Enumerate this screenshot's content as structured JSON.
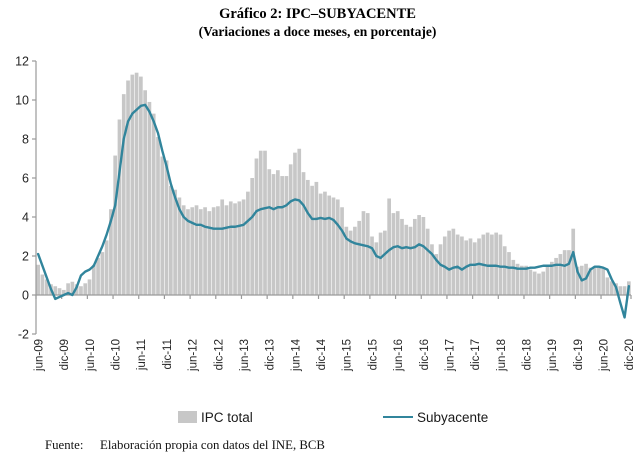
{
  "title": "Gráfico 2: IPC–SUBYACENTE",
  "subtitle": "(Variaciones a doce meses, en porcentaje)",
  "footer": {
    "label": "Fuente:",
    "text": "Elaboración propia con datos del INE, BCB"
  },
  "legend": [
    {
      "label": "IPC total",
      "type": "bar",
      "color": "#C7C7C7"
    },
    {
      "label": "Subyacente",
      "type": "line",
      "color": "#31859C"
    }
  ],
  "chart_data": {
    "type": "bar+line",
    "title": "Gráfico 2: IPC–SUBYACENTE",
    "subtitle": "(Variaciones a doce meses, en porcentaje)",
    "x_tick_labels": [
      "jun-09",
      "dic-09",
      "jun-10",
      "dic-10",
      "jun-11",
      "dic-11",
      "jun-12",
      "dic-12",
      "jun-13",
      "dic-13",
      "jun-14",
      "dic-14",
      "jun-15",
      "dic-15",
      "jun-16",
      "dic-16",
      "jun-17",
      "dic-17",
      "jun-18",
      "dic-18",
      "jun-19",
      "dic-19",
      "jun-20",
      "dic-20"
    ],
    "months_per_tick": 6,
    "y_ticks": [
      -2,
      0,
      2,
      4,
      6,
      8,
      10,
      12
    ],
    "ylim": [
      -2,
      12
    ],
    "grid": false,
    "legend_position": "bottom",
    "axis_color": "#9A9A9A",
    "label_color": "#262626",
    "series": [
      {
        "name": "IPC total",
        "type": "bar",
        "color": "#C7C7C7",
        "values": [
          1.55,
          1.05,
          0.8,
          0.55,
          0.45,
          0.35,
          0.26,
          0.6,
          0.68,
          0.55,
          0.45,
          0.6,
          0.8,
          1.55,
          1.9,
          2.2,
          2.8,
          4.4,
          7.15,
          9.0,
          10.3,
          11.0,
          11.3,
          11.4,
          11.2,
          10.5,
          9.9,
          9.3,
          8.1,
          7.1,
          6.9,
          5.6,
          5.4,
          5.0,
          4.6,
          4.4,
          4.5,
          4.6,
          4.4,
          4.5,
          4.3,
          4.5,
          4.55,
          4.9,
          4.6,
          4.8,
          4.7,
          4.8,
          4.9,
          5.3,
          6.0,
          7.0,
          7.4,
          7.4,
          6.45,
          6.2,
          6.4,
          6.1,
          6.1,
          6.7,
          7.3,
          7.5,
          6.3,
          5.9,
          5.6,
          5.8,
          5.2,
          5.3,
          5.1,
          5.0,
          4.9,
          4.5,
          3.5,
          3.3,
          3.5,
          3.8,
          4.3,
          4.2,
          3.0,
          2.7,
          3.2,
          3.3,
          4.95,
          4.2,
          4.3,
          3.9,
          3.6,
          3.5,
          3.9,
          4.1,
          4.0,
          3.4,
          2.6,
          2.1,
          2.6,
          3.0,
          3.3,
          3.4,
          3.1,
          3.0,
          2.8,
          2.9,
          2.7,
          2.9,
          3.1,
          3.2,
          3.1,
          3.2,
          3.1,
          2.5,
          2.2,
          1.8,
          1.6,
          1.5,
          1.5,
          1.3,
          1.2,
          1.1,
          1.2,
          1.5,
          1.7,
          1.9,
          2.1,
          2.3,
          2.3,
          3.4,
          1.45,
          1.5,
          1.6,
          1.4,
          1.4,
          1.4,
          1.35,
          0.9,
          0.7,
          0.6,
          0.45,
          0.45,
          0.7
        ]
      },
      {
        "name": "Subyacente",
        "type": "line",
        "color": "#31859C",
        "values": [
          2.1,
          1.5,
          0.9,
          0.3,
          -0.2,
          -0.1,
          0.0,
          0.1,
          0.0,
          0.4,
          1.0,
          1.2,
          1.3,
          1.5,
          2.0,
          2.5,
          3.1,
          3.8,
          4.6,
          6.3,
          8.0,
          8.9,
          9.3,
          9.5,
          9.7,
          9.75,
          9.4,
          8.9,
          8.3,
          7.4,
          6.6,
          5.7,
          5.0,
          4.4,
          4.0,
          3.8,
          3.7,
          3.6,
          3.6,
          3.5,
          3.45,
          3.4,
          3.4,
          3.4,
          3.45,
          3.5,
          3.5,
          3.55,
          3.6,
          3.8,
          4.0,
          4.3,
          4.4,
          4.45,
          4.5,
          4.4,
          4.5,
          4.5,
          4.6,
          4.8,
          4.9,
          4.85,
          4.6,
          4.2,
          3.9,
          3.9,
          3.95,
          3.9,
          3.95,
          3.85,
          3.6,
          3.3,
          2.9,
          2.75,
          2.65,
          2.6,
          2.55,
          2.5,
          2.4,
          2.0,
          1.9,
          2.1,
          2.3,
          2.45,
          2.5,
          2.4,
          2.45,
          2.4,
          2.45,
          2.6,
          2.5,
          2.3,
          2.1,
          1.8,
          1.55,
          1.45,
          1.3,
          1.4,
          1.45,
          1.3,
          1.45,
          1.55,
          1.55,
          1.6,
          1.55,
          1.5,
          1.5,
          1.5,
          1.45,
          1.45,
          1.4,
          1.4,
          1.35,
          1.35,
          1.35,
          1.4,
          1.4,
          1.45,
          1.5,
          1.5,
          1.5,
          1.55,
          1.55,
          1.5,
          1.6,
          2.2,
          1.2,
          0.75,
          0.85,
          1.3,
          1.45,
          1.45,
          1.4,
          1.3,
          0.8,
          0.4,
          -0.4,
          -1.15,
          0.45
        ]
      }
    ]
  }
}
